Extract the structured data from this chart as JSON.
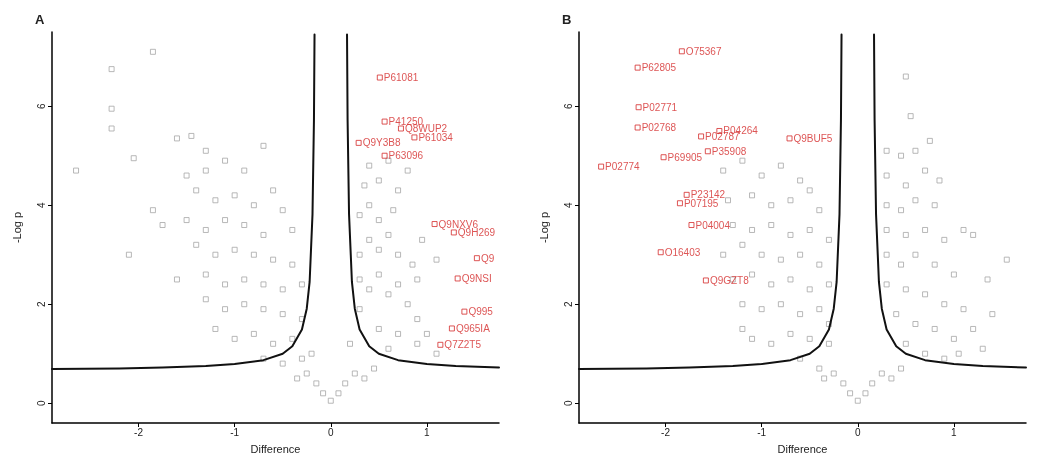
{
  "chart_data": [
    {
      "type": "scatter",
      "title": "A",
      "xlabel": "Difference",
      "ylabel": "-Log p",
      "xlim": [
        -2.9,
        1.75
      ],
      "ylim": [
        -0.4,
        7.5
      ],
      "xticks": [
        -2,
        -1,
        0,
        1
      ],
      "yticks": [
        0,
        2,
        4,
        6
      ],
      "grid": false,
      "marker": "square",
      "series": [
        {
          "color": "#a6a6a6",
          "x": [
            -2.65,
            -2.28,
            -2.28,
            -2.28,
            -1.85,
            -2.05,
            -2.1,
            -1.6,
            -1.85,
            -1.75,
            -1.6,
            -1.45,
            -0.7,
            -1.3,
            -1.5,
            -1.3,
            -1.1,
            -0.9,
            -0.6,
            -0.5,
            -1.4,
            -1.2,
            -1.0,
            -0.8,
            -1.5,
            -1.3,
            -1.1,
            -0.9,
            -0.7,
            -0.4,
            -1.4,
            -1.2,
            -1.0,
            -0.8,
            -0.6,
            -0.4,
            -1.3,
            -1.1,
            -0.9,
            -0.7,
            -0.5,
            -0.3,
            -1.3,
            -1.1,
            -0.9,
            -0.7,
            -0.5,
            -0.3,
            -1.2,
            -1.0,
            -0.8,
            -0.6,
            -0.4,
            -0.7,
            -0.5,
            -0.3,
            -0.25,
            -0.15,
            -0.08,
            0,
            0.08,
            0.15,
            0.25,
            -0.35,
            0.35,
            0.45,
            0.2,
            -0.2,
            0.3,
            0.3,
            0.4,
            0.5,
            0.6,
            0.7,
            0.8,
            0.9,
            0.3,
            0.4,
            0.5,
            0.6,
            0.7,
            0.85,
            0.3,
            0.4,
            0.5,
            0.65,
            0.35,
            0.5,
            0.7,
            0.4,
            0.6,
            0.8,
            0.5,
            0.7,
            0.9,
            1.1,
            1.0,
            0.6,
            0.9,
            1.1,
            0.95
          ],
          "values": [
            4.7,
            6.75,
            5.95,
            5.55,
            7.1,
            4.95,
            3.0,
            2.5,
            3.9,
            3.6,
            5.35,
            5.4,
            5.2,
            5.1,
            4.6,
            4.7,
            4.9,
            4.7,
            4.3,
            3.9,
            4.3,
            4.1,
            4.2,
            4.0,
            3.7,
            3.5,
            3.7,
            3.6,
            3.4,
            3.5,
            3.2,
            3.0,
            3.1,
            3.0,
            2.9,
            2.8,
            2.6,
            2.4,
            2.5,
            2.4,
            2.3,
            2.4,
            2.1,
            1.9,
            2.0,
            1.9,
            1.8,
            1.7,
            1.5,
            1.3,
            1.4,
            1.2,
            1.3,
            0.9,
            0.8,
            0.9,
            0.6,
            0.4,
            0.2,
            0.05,
            0.2,
            0.4,
            0.6,
            0.5,
            0.5,
            0.7,
            1.2,
            1.0,
            1.9,
            2.5,
            2.3,
            2.6,
            2.2,
            2.4,
            2.0,
            1.7,
            3.0,
            3.3,
            3.1,
            3.4,
            3.0,
            2.8,
            3.8,
            4.0,
            3.7,
            3.9,
            4.4,
            4.5,
            4.3,
            4.8,
            4.9,
            4.7,
            1.5,
            1.4,
            1.2,
            1.0,
            1.4,
            1.1,
            2.5,
            2.9,
            3.3
          ]
        },
        {
          "color": "#d42a2a",
          "x": [
            0.51,
            0.56,
            0.73,
            0.87,
            0.29,
            0.56,
            1.08,
            1.28,
            1.52,
            1.32,
            1.39,
            1.26,
            1.14
          ],
          "values": [
            6.58,
            5.69,
            5.55,
            5.37,
            5.26,
            5.0,
            3.62,
            3.45,
            2.93,
            2.52,
            1.85,
            1.51,
            1.18
          ],
          "value_labels": [
            "P61081",
            "P41250",
            "Q8WUP2",
            "P61034",
            "Q9Y3B8",
            "P63096",
            "Q9NXV6",
            "Q9H269",
            "Q9",
            "Q9NSI",
            "Q995",
            "Q965IA",
            "Q7Z2T5"
          ]
        },
        {
          "type": "line",
          "color": "#111111",
          "marker": "none",
          "line_style": "solid",
          "x": [
            -2.9,
            -2.2,
            -1.75,
            -1.3,
            -1.0,
            -0.7,
            -0.5,
            -0.4,
            -0.3,
            -0.25,
            -0.22,
            -0.19,
            -0.175,
            -0.169
          ],
          "values": [
            0.69,
            0.7,
            0.72,
            0.75,
            0.79,
            0.87,
            1.0,
            1.15,
            1.49,
            1.91,
            2.45,
            3.82,
            5.72,
            7.45
          ]
        },
        {
          "type": "line",
          "color": "#111111",
          "marker": "none",
          "line_style": "solid",
          "x": [
            0.169,
            0.175,
            0.19,
            0.22,
            0.25,
            0.3,
            0.4,
            0.5,
            0.7,
            1.0,
            1.3,
            1.75
          ],
          "values": [
            7.45,
            5.72,
            3.82,
            2.45,
            1.91,
            1.49,
            1.15,
            1.0,
            0.87,
            0.79,
            0.75,
            0.72
          ]
        }
      ]
    },
    {
      "type": "scatter",
      "title": "B",
      "xlabel": "Difference",
      "ylabel": "-Log p",
      "xlim": [
        -2.9,
        1.75
      ],
      "ylim": [
        -0.4,
        7.5
      ],
      "xticks": [
        -2,
        -1,
        0,
        1
      ],
      "yticks": [
        0,
        2,
        4,
        6
      ],
      "grid": false,
      "marker": "square",
      "series": [
        {
          "color": "#a6a6a6",
          "x": [
            -1.4,
            -1.2,
            -1.0,
            -0.8,
            -0.6,
            -0.5,
            -1.35,
            -1.1,
            -0.9,
            -0.7,
            -0.4,
            -1.3,
            -1.1,
            -0.9,
            -0.7,
            -0.5,
            -0.3,
            -1.4,
            -1.2,
            -1.0,
            -0.8,
            -0.6,
            -0.4,
            -1.3,
            -1.1,
            -0.9,
            -0.7,
            -0.5,
            -0.3,
            -1.2,
            -1.0,
            -0.8,
            -0.6,
            -0.4,
            -1.2,
            -1.1,
            -0.9,
            -0.7,
            -0.5,
            -0.3,
            -0.6,
            -0.4,
            -0.3,
            -0.25,
            -0.15,
            -0.08,
            0,
            0.08,
            0.15,
            0.25,
            -0.35,
            0.35,
            0.45,
            0.5,
            0.55,
            0.75,
            0.3,
            0.45,
            0.6,
            0.3,
            0.5,
            0.7,
            0.85,
            0.3,
            0.45,
            0.6,
            0.8,
            0.3,
            0.5,
            0.7,
            0.9,
            1.1,
            1.2,
            1.55,
            0.3,
            0.45,
            0.6,
            0.8,
            1.0,
            1.35,
            0.3,
            0.5,
            0.7,
            0.9,
            1.1,
            1.4,
            0.4,
            0.6,
            0.8,
            1.0,
            1.2,
            1.3,
            0.5,
            0.7,
            0.9,
            1.05
          ],
          "values": [
            4.7,
            4.9,
            4.6,
            4.8,
            4.5,
            4.3,
            4.1,
            4.2,
            4.0,
            4.1,
            3.9,
            3.6,
            3.5,
            3.6,
            3.4,
            3.5,
            3.3,
            3.0,
            3.2,
            3.0,
            2.9,
            3.0,
            2.8,
            2.5,
            2.6,
            2.4,
            2.5,
            2.3,
            2.4,
            2.0,
            1.9,
            2.0,
            1.8,
            1.9,
            1.5,
            1.3,
            1.2,
            1.4,
            1.3,
            1.2,
            0.9,
            0.7,
            1.6,
            0.6,
            0.4,
            0.2,
            0.05,
            0.2,
            0.4,
            0.6,
            0.5,
            0.5,
            0.7,
            6.6,
            5.8,
            5.3,
            5.1,
            5.0,
            5.1,
            4.6,
            4.4,
            4.7,
            4.5,
            4.0,
            3.9,
            4.1,
            4.0,
            3.5,
            3.4,
            3.5,
            3.3,
            3.5,
            3.4,
            2.9,
            3.0,
            2.8,
            3.0,
            2.8,
            2.6,
            2.5,
            2.4,
            2.3,
            2.2,
            2.0,
            1.9,
            1.8,
            1.8,
            1.6,
            1.5,
            1.3,
            1.5,
            1.1,
            1.2,
            1.0,
            0.9,
            1.0
          ]
        },
        {
          "color": "#d42a2a",
          "x": [
            -1.83,
            -2.29,
            -2.28,
            -2.29,
            -1.44,
            -1.63,
            -1.56,
            -0.71,
            -2.02,
            -2.67,
            -1.78,
            -1.85,
            -1.73,
            -2.05,
            -1.58
          ],
          "values": [
            7.11,
            6.78,
            5.98,
            5.57,
            5.5,
            5.39,
            5.09,
            5.35,
            4.97,
            4.78,
            4.21,
            4.04,
            3.6,
            3.05,
            2.48
          ],
          "value_labels": [
            "O75367",
            "P62805",
            "P02771",
            "P02768",
            "P04264",
            "P02787",
            "P35908",
            "Q9BUF5",
            "P69905",
            "P02774",
            "P23142",
            "P07195",
            "P04004",
            "O16403",
            "Q9GZT8"
          ]
        },
        {
          "type": "line",
          "color": "#111111",
          "marker": "none",
          "line_style": "solid",
          "x": [
            -2.9,
            -2.2,
            -1.75,
            -1.3,
            -1.0,
            -0.7,
            -0.5,
            -0.4,
            -0.3,
            -0.25,
            -0.22,
            -0.19,
            -0.175,
            -0.169
          ],
          "values": [
            0.69,
            0.7,
            0.72,
            0.75,
            0.79,
            0.87,
            1.0,
            1.15,
            1.49,
            1.91,
            2.45,
            3.82,
            5.72,
            7.45
          ]
        },
        {
          "type": "line",
          "color": "#111111",
          "marker": "none",
          "line_style": "solid",
          "x": [
            0.169,
            0.175,
            0.19,
            0.22,
            0.25,
            0.3,
            0.4,
            0.5,
            0.7,
            1.0,
            1.3,
            1.75
          ],
          "values": [
            7.45,
            5.72,
            3.82,
            2.45,
            1.91,
            1.49,
            1.15,
            1.0,
            0.87,
            0.79,
            0.75,
            0.72
          ]
        }
      ]
    }
  ]
}
